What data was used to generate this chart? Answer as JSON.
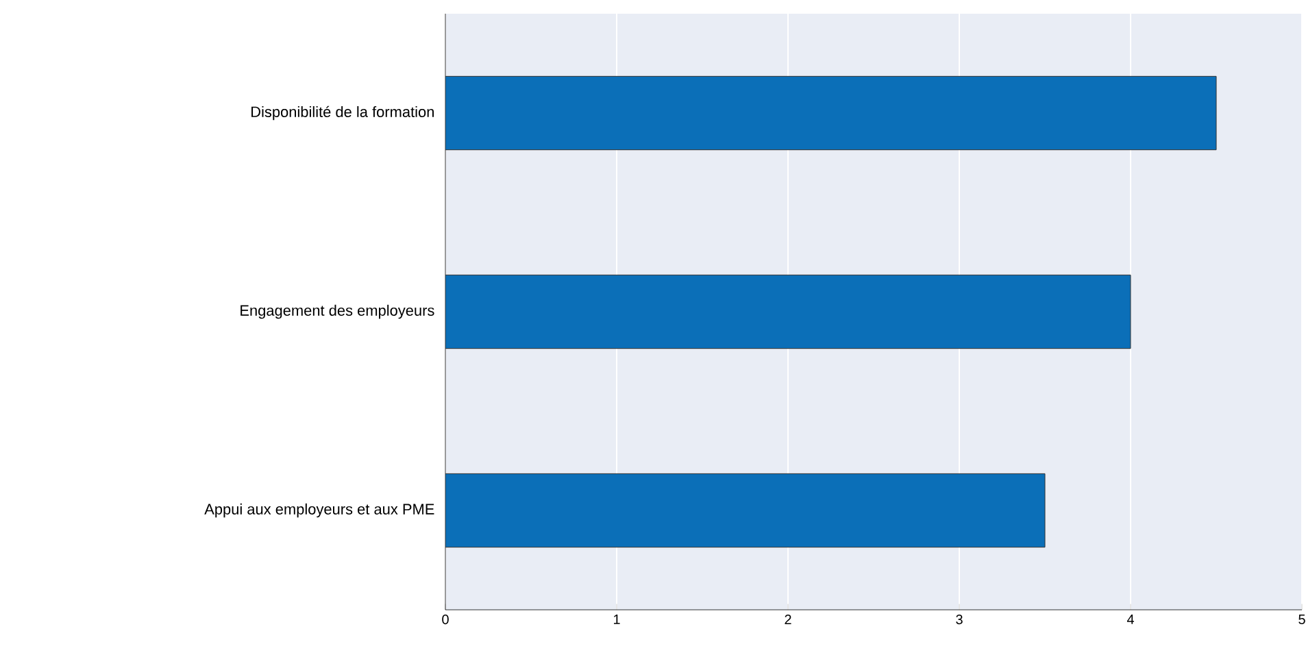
{
  "chart_data": {
    "type": "bar",
    "orientation": "horizontal",
    "categories": [
      "Disponibilité de la formation",
      "Engagement des employeurs",
      "Appui aux employeurs et aux PME"
    ],
    "values": [
      4.5,
      4.0,
      3.5
    ],
    "color": "#0b6fb8",
    "xlim": [
      0,
      5
    ],
    "xticks": [
      0,
      1,
      2,
      3,
      4,
      5
    ],
    "grid": "x"
  }
}
